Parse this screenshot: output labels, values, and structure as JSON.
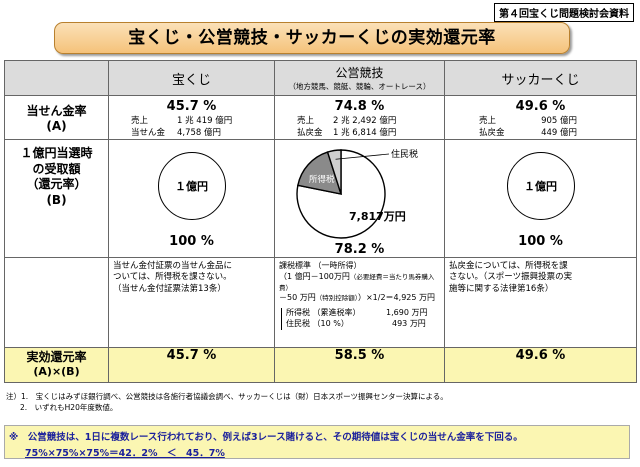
{
  "doc_tag": "第４回宝くじ問題検討会資料",
  "title": "宝くじ・公営競技・サッカーくじの実効還元率",
  "columns": {
    "takarakuji": "宝くじ",
    "koei": "公営競技",
    "koei_sub": "（地方競馬、競艇、競輪、オートレース）",
    "soccer": "サッカーくじ"
  },
  "row1": {
    "label": "当せん金率",
    "label_sub": "(A)",
    "takarakuji": {
      "rate": "45.7 %",
      "l1k": "売上",
      "l1v": "1 兆 419 億円",
      "l2k": "当せん金",
      "l2v": "4,758 億円"
    },
    "koei": {
      "rate": "74.8 %",
      "l1k": "売上",
      "l1v": "2 兆 2,492 億円",
      "l2k": "払戻金",
      "l2v": "1 兆 6,814 億円"
    },
    "soccer": {
      "rate": "49.6 %",
      "l1k": "売上",
      "l1v": "905 億円",
      "l2k": "払戻金",
      "l2v": "449 億円"
    }
  },
  "row2": {
    "label_l1": "１億円当選時",
    "label_l2": "の受取額",
    "label_l3": "（還元率）",
    "label_l4": "(B)",
    "takarakuji": {
      "circle": "１億円",
      "pct": "100 %"
    },
    "koei": {
      "tax_label": "住民税",
      "tax2_label": "所得税",
      "amount": "7,817万円",
      "pct": "78.2 %"
    },
    "soccer": {
      "circle": "１億円",
      "pct": "100 %"
    }
  },
  "row3": {
    "takarakuji": {
      "t1": "当せん金付証票の当せん金品に",
      "t2": "ついては、所得税を課さない。",
      "t3": "（当せん金付証票法第13条）"
    },
    "koei": {
      "t1": "課税標準 （一時所得）",
      "t2": "（1 億円－100万円",
      "t2b": "（必要経費＝当たり馬券購入費）",
      "t3": "－50 万円",
      "t3b": "（特別控除額）",
      "t3c": "）×1/2＝4,925 万円",
      "tax1k": "所得税 （累進税率）",
      "tax1v": "1,690 万円",
      "tax2k": "住民税 （10 %）",
      "tax2v": "493 万円"
    },
    "soccer": {
      "t1": "払戻金については、所得税を課",
      "t2": "さない。（スポーツ振興投票の実",
      "t3": "施等に関する法律第16条）"
    }
  },
  "row4": {
    "label": "実効還元率",
    "label_sub": "(A)×(B)",
    "takarakuji": "45.7 %",
    "koei": "58.5 %",
    "soccer": "49.6 %"
  },
  "footnotes": {
    "n1": "注）1.　宝くじはみずほ銀行調べ、公営競技は各施行者協議会調べ、サッカーくじは（財）日本スポーツ振興センター決算による。",
    "n2": "2.　いずれもH20年度数値。"
  },
  "bottom_note": {
    "line1": "※　公営競技は、1日に複数レース行われており、例えば3レース賭けると、その期待値は宝くじの当せん金率を下回る。",
    "line2": "75%×75%×75%＝42．2%　＜　45．7%"
  },
  "chart_data": {
    "type": "pie",
    "categories": [
      "7,817万円",
      "所得税",
      "住民税"
    ],
    "values": [
      78.17,
      16.9,
      4.93
    ]
  },
  "colors": {
    "pie_main": "#ffffff",
    "pie_income_tax": "#8a8a8a",
    "pie_resident_tax": "#d0d0d0",
    "title_bg": "#f5c27a",
    "highlight": "#fbf6b2"
  }
}
